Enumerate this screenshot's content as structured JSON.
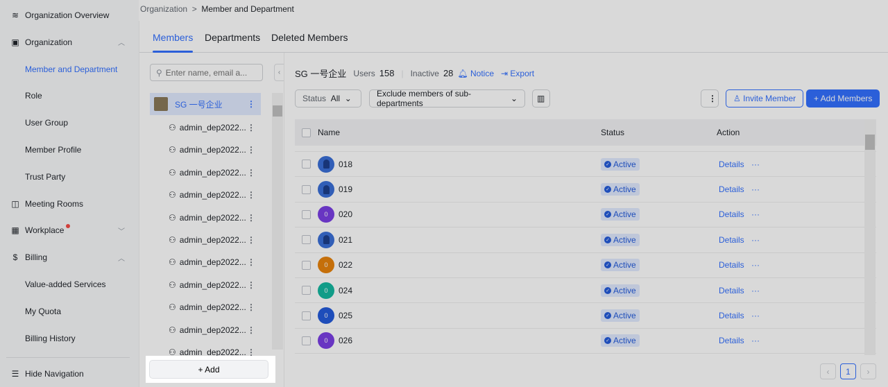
{
  "breadcrumb": {
    "parent": "Organization",
    "current": "Member and Department"
  },
  "sidebar": {
    "items": [
      {
        "label": "Organization Overview",
        "icon": "layers-icon"
      },
      {
        "label": "Organization",
        "icon": "contact-book-icon",
        "expanded": true
      },
      {
        "label": "Member and Department",
        "active": true
      },
      {
        "label": "Role"
      },
      {
        "label": "User Group"
      },
      {
        "label": "Member Profile"
      },
      {
        "label": "Trust Party"
      },
      {
        "label": "Meeting Rooms",
        "icon": "door-icon"
      },
      {
        "label": "Workplace",
        "icon": "grid-icon",
        "badge_dot": true
      },
      {
        "label": "Billing",
        "icon": "dollar-circle-icon",
        "expanded": true
      },
      {
        "label": "Value-added Services"
      },
      {
        "label": "My Quota"
      },
      {
        "label": "Billing History"
      }
    ],
    "hide_nav": "Hide Navigation"
  },
  "tabs": [
    "Members",
    "Departments",
    "Deleted Members"
  ],
  "tree": {
    "search_placeholder": "Enter name, email a...",
    "root": "SG 一号企业",
    "nodes": [
      "admin_dep2022...",
      "admin_dep2022...",
      "admin_dep2022...",
      "admin_dep2022...",
      "admin_dep2022...",
      "admin_dep2022...",
      "admin_dep2022...",
      "admin_dep2022...",
      "admin_dep2022...",
      "admin_dep2022...",
      "admin_dep2022...",
      "admin_dep2022..."
    ],
    "add_label": "+ Add"
  },
  "summary": {
    "org": "SG 一号企业",
    "users_label": "Users",
    "users": "158",
    "inactive_label": "Inactive",
    "inactive": "28",
    "notice": "Notice",
    "export": "Export"
  },
  "filters": {
    "status_label": "Status",
    "status_value": "All",
    "scope": "Exclude members of sub-departments"
  },
  "actions": {
    "invite": "Invite Member",
    "add": "+ Add Members"
  },
  "table": {
    "columns": [
      "Name",
      "Status",
      "Action"
    ],
    "rows": [
      {
        "name": "018",
        "avatar": "photo",
        "color": "#3a6fd8",
        "status": "Active"
      },
      {
        "name": "019",
        "avatar": "photo",
        "color": "#3a6fd8",
        "status": "Active"
      },
      {
        "name": "020",
        "avatar": "0",
        "color": "#7b3fe4",
        "status": "Active"
      },
      {
        "name": "021",
        "avatar": "photo",
        "color": "#3a6fd8",
        "status": "Active"
      },
      {
        "name": "022",
        "avatar": "0",
        "color": "#e8830c",
        "status": "Active"
      },
      {
        "name": "024",
        "avatar": "0",
        "color": "#14b8a0",
        "status": "Active"
      },
      {
        "name": "025",
        "avatar": "0",
        "color": "#245bdb",
        "status": "Active"
      },
      {
        "name": "026",
        "avatar": "0",
        "color": "#7b3fe4",
        "status": "Active"
      }
    ],
    "details": "Details",
    "more": "···"
  },
  "pagination": {
    "current": "1"
  },
  "colors": {
    "accent": "#3370ff"
  }
}
